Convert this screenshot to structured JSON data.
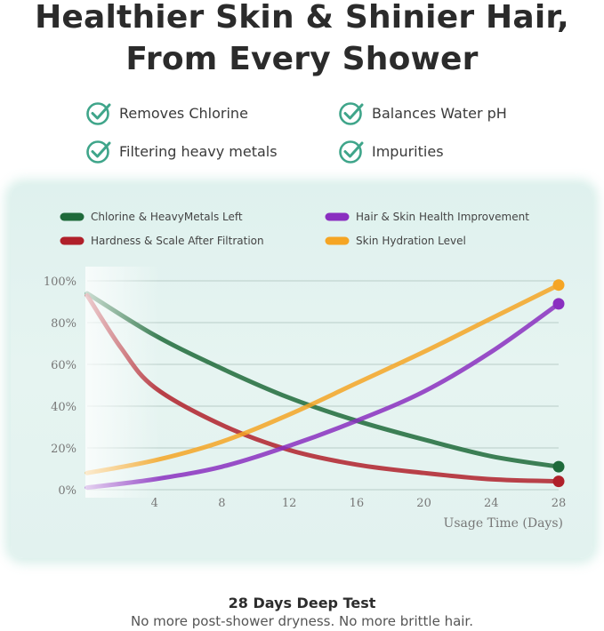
{
  "headline": {
    "line1": "Healthier Skin & Shinier Hair,",
    "line2": "From Every Shower"
  },
  "features": [
    {
      "label": "Removes Chlorine",
      "icon": "check-circle-icon"
    },
    {
      "label": "Balances Water pH",
      "icon": "check-circle-icon"
    },
    {
      "label": "Filtering heavy metals",
      "icon": "check-circle-icon"
    },
    {
      "label": "Impurities",
      "icon": "check-circle-icon"
    }
  ],
  "colors": {
    "accent": "#3fa58a",
    "green": "#1e6a3a",
    "red": "#b0202a",
    "purple": "#8a2fc0",
    "orange": "#f5a524"
  },
  "chart_data": {
    "type": "line",
    "title": "",
    "xlabel": "Usage Time (Days)",
    "ylabel": "",
    "xlim": [
      0,
      28
    ],
    "ylim": [
      0,
      100
    ],
    "x_ticks": [
      4,
      8,
      12,
      16,
      20,
      24,
      28
    ],
    "y_ticks": [
      "0%",
      "20%",
      "40%",
      "60%",
      "80%",
      "100%"
    ],
    "grid": true,
    "legend_position": "top",
    "series": [
      {
        "name": "Chlorine & HeavyMetals Left",
        "color": "#1e6a3a",
        "x": [
          0,
          4,
          8,
          12,
          16,
          20,
          24,
          28
        ],
        "y": [
          94,
          74,
          58,
          44,
          33,
          24,
          16,
          11
        ]
      },
      {
        "name": "Hair & Skin Health Improvement",
        "color": "#8a2fc0",
        "x": [
          0,
          4,
          8,
          12,
          16,
          20,
          24,
          28
        ],
        "y": [
          1,
          5,
          11,
          21,
          33,
          47,
          66,
          89
        ]
      },
      {
        "name": "Hardness & Scale After Filtration",
        "color": "#b0202a",
        "x": [
          0,
          2,
          4,
          8,
          12,
          16,
          20,
          24,
          28
        ],
        "y": [
          93,
          68,
          49,
          31,
          19,
          12,
          8,
          5,
          4
        ]
      },
      {
        "name": "Skin Hydration Level",
        "color": "#f5a524",
        "x": [
          0,
          4,
          8,
          12,
          16,
          20,
          24,
          28
        ],
        "y": [
          8,
          14,
          23,
          36,
          51,
          66,
          82,
          98
        ]
      }
    ]
  },
  "footer": {
    "title": "28 Days Deep Test",
    "subtitle": "No more post-shower dryness. No more brittle hair."
  }
}
